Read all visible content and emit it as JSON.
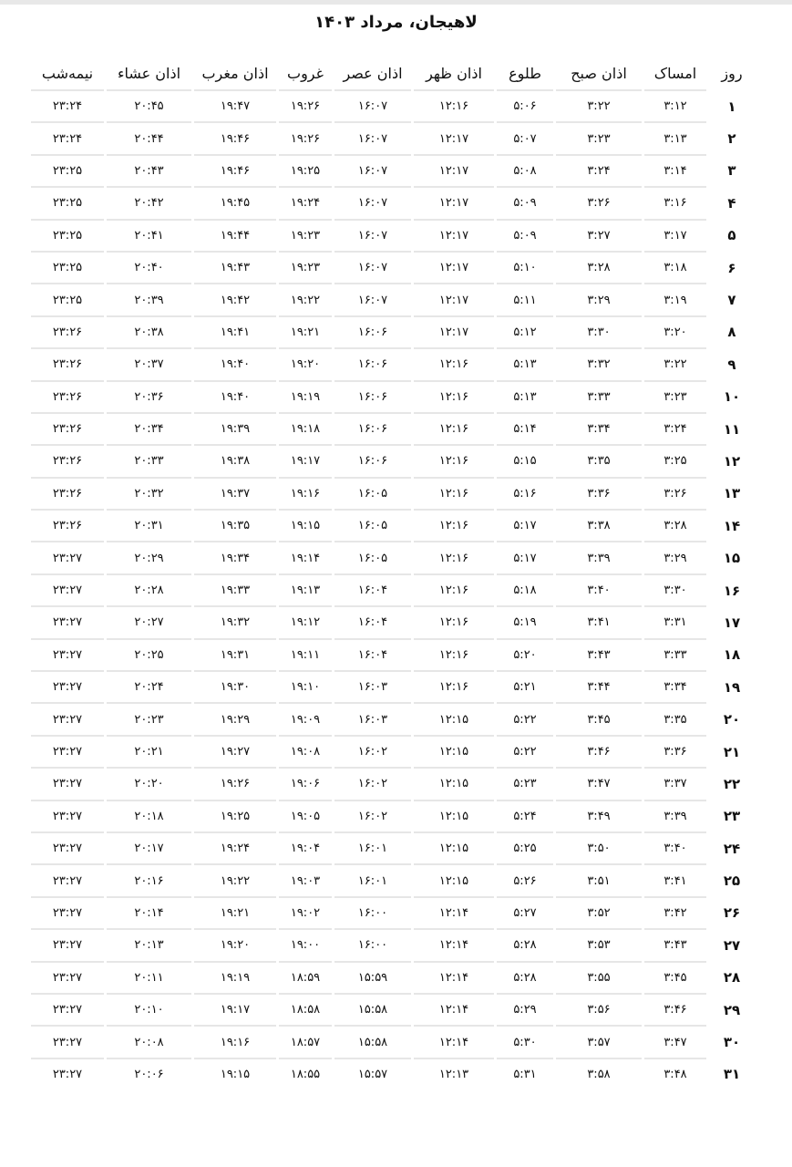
{
  "title": "لاهیجان، مرداد ۱۴۰۳",
  "table": {
    "headers": [
      "روز",
      "امساک",
      "اذان صبح",
      "طلوع",
      "اذان ظهر",
      "اذان عصر",
      "غروب",
      "اذان مغرب",
      "اذان عشاء",
      "نیمه‌شب"
    ],
    "rows": [
      [
        "۱",
        "۳:۱۲",
        "۳:۲۲",
        "۵:۰۶",
        "۱۲:۱۶",
        "۱۶:۰۷",
        "۱۹:۲۶",
        "۱۹:۴۷",
        "۲۰:۴۵",
        "۲۳:۲۴"
      ],
      [
        "۲",
        "۳:۱۳",
        "۳:۲۳",
        "۵:۰۷",
        "۱۲:۱۷",
        "۱۶:۰۷",
        "۱۹:۲۶",
        "۱۹:۴۶",
        "۲۰:۴۴",
        "۲۳:۲۴"
      ],
      [
        "۳",
        "۳:۱۴",
        "۳:۲۴",
        "۵:۰۸",
        "۱۲:۱۷",
        "۱۶:۰۷",
        "۱۹:۲۵",
        "۱۹:۴۶",
        "۲۰:۴۳",
        "۲۳:۲۵"
      ],
      [
        "۴",
        "۳:۱۶",
        "۳:۲۶",
        "۵:۰۹",
        "۱۲:۱۷",
        "۱۶:۰۷",
        "۱۹:۲۴",
        "۱۹:۴۵",
        "۲۰:۴۲",
        "۲۳:۲۵"
      ],
      [
        "۵",
        "۳:۱۷",
        "۳:۲۷",
        "۵:۰۹",
        "۱۲:۱۷",
        "۱۶:۰۷",
        "۱۹:۲۳",
        "۱۹:۴۴",
        "۲۰:۴۱",
        "۲۳:۲۵"
      ],
      [
        "۶",
        "۳:۱۸",
        "۳:۲۸",
        "۵:۱۰",
        "۱۲:۱۷",
        "۱۶:۰۷",
        "۱۹:۲۳",
        "۱۹:۴۳",
        "۲۰:۴۰",
        "۲۳:۲۵"
      ],
      [
        "۷",
        "۳:۱۹",
        "۳:۲۹",
        "۵:۱۱",
        "۱۲:۱۷",
        "۱۶:۰۷",
        "۱۹:۲۲",
        "۱۹:۴۲",
        "۲۰:۳۹",
        "۲۳:۲۵"
      ],
      [
        "۸",
        "۳:۲۰",
        "۳:۳۰",
        "۵:۱۲",
        "۱۲:۱۷",
        "۱۶:۰۶",
        "۱۹:۲۱",
        "۱۹:۴۱",
        "۲۰:۳۸",
        "۲۳:۲۶"
      ],
      [
        "۹",
        "۳:۲۲",
        "۳:۳۲",
        "۵:۱۳",
        "۱۲:۱۶",
        "۱۶:۰۶",
        "۱۹:۲۰",
        "۱۹:۴۰",
        "۲۰:۳۷",
        "۲۳:۲۶"
      ],
      [
        "۱۰",
        "۳:۲۳",
        "۳:۳۳",
        "۵:۱۳",
        "۱۲:۱۶",
        "۱۶:۰۶",
        "۱۹:۱۹",
        "۱۹:۴۰",
        "۲۰:۳۶",
        "۲۳:۲۶"
      ],
      [
        "۱۱",
        "۳:۲۴",
        "۳:۳۴",
        "۵:۱۴",
        "۱۲:۱۶",
        "۱۶:۰۶",
        "۱۹:۱۸",
        "۱۹:۳۹",
        "۲۰:۳۴",
        "۲۳:۲۶"
      ],
      [
        "۱۲",
        "۳:۲۵",
        "۳:۳۵",
        "۵:۱۵",
        "۱۲:۱۶",
        "۱۶:۰۶",
        "۱۹:۱۷",
        "۱۹:۳۸",
        "۲۰:۳۳",
        "۲۳:۲۶"
      ],
      [
        "۱۳",
        "۳:۲۶",
        "۳:۳۶",
        "۵:۱۶",
        "۱۲:۱۶",
        "۱۶:۰۵",
        "۱۹:۱۶",
        "۱۹:۳۷",
        "۲۰:۳۲",
        "۲۳:۲۶"
      ],
      [
        "۱۴",
        "۳:۲۸",
        "۳:۳۸",
        "۵:۱۷",
        "۱۲:۱۶",
        "۱۶:۰۵",
        "۱۹:۱۵",
        "۱۹:۳۵",
        "۲۰:۳۱",
        "۲۳:۲۶"
      ],
      [
        "۱۵",
        "۳:۲۹",
        "۳:۳۹",
        "۵:۱۷",
        "۱۲:۱۶",
        "۱۶:۰۵",
        "۱۹:۱۴",
        "۱۹:۳۴",
        "۲۰:۲۹",
        "۲۳:۲۷"
      ],
      [
        "۱۶",
        "۳:۳۰",
        "۳:۴۰",
        "۵:۱۸",
        "۱۲:۱۶",
        "۱۶:۰۴",
        "۱۹:۱۳",
        "۱۹:۳۳",
        "۲۰:۲۸",
        "۲۳:۲۷"
      ],
      [
        "۱۷",
        "۳:۳۱",
        "۳:۴۱",
        "۵:۱۹",
        "۱۲:۱۶",
        "۱۶:۰۴",
        "۱۹:۱۲",
        "۱۹:۳۲",
        "۲۰:۲۷",
        "۲۳:۲۷"
      ],
      [
        "۱۸",
        "۳:۳۳",
        "۳:۴۳",
        "۵:۲۰",
        "۱۲:۱۶",
        "۱۶:۰۴",
        "۱۹:۱۱",
        "۱۹:۳۱",
        "۲۰:۲۵",
        "۲۳:۲۷"
      ],
      [
        "۱۹",
        "۳:۳۴",
        "۳:۴۴",
        "۵:۲۱",
        "۱۲:۱۶",
        "۱۶:۰۳",
        "۱۹:۱۰",
        "۱۹:۳۰",
        "۲۰:۲۴",
        "۲۳:۲۷"
      ],
      [
        "۲۰",
        "۳:۳۵",
        "۳:۴۵",
        "۵:۲۲",
        "۱۲:۱۵",
        "۱۶:۰۳",
        "۱۹:۰۹",
        "۱۹:۲۹",
        "۲۰:۲۳",
        "۲۳:۲۷"
      ],
      [
        "۲۱",
        "۳:۳۶",
        "۳:۴۶",
        "۵:۲۲",
        "۱۲:۱۵",
        "۱۶:۰۲",
        "۱۹:۰۸",
        "۱۹:۲۷",
        "۲۰:۲۱",
        "۲۳:۲۷"
      ],
      [
        "۲۲",
        "۳:۳۷",
        "۳:۴۷",
        "۵:۲۳",
        "۱۲:۱۵",
        "۱۶:۰۲",
        "۱۹:۰۶",
        "۱۹:۲۶",
        "۲۰:۲۰",
        "۲۳:۲۷"
      ],
      [
        "۲۳",
        "۳:۳۹",
        "۳:۴۹",
        "۵:۲۴",
        "۱۲:۱۵",
        "۱۶:۰۲",
        "۱۹:۰۵",
        "۱۹:۲۵",
        "۲۰:۱۸",
        "۲۳:۲۷"
      ],
      [
        "۲۴",
        "۳:۴۰",
        "۳:۵۰",
        "۵:۲۵",
        "۱۲:۱۵",
        "۱۶:۰۱",
        "۱۹:۰۴",
        "۱۹:۲۴",
        "۲۰:۱۷",
        "۲۳:۲۷"
      ],
      [
        "۲۵",
        "۳:۴۱",
        "۳:۵۱",
        "۵:۲۶",
        "۱۲:۱۵",
        "۱۶:۰۱",
        "۱۹:۰۳",
        "۱۹:۲۲",
        "۲۰:۱۶",
        "۲۳:۲۷"
      ],
      [
        "۲۶",
        "۳:۴۲",
        "۳:۵۲",
        "۵:۲۷",
        "۱۲:۱۴",
        "۱۶:۰۰",
        "۱۹:۰۲",
        "۱۹:۲۱",
        "۲۰:۱۴",
        "۲۳:۲۷"
      ],
      [
        "۲۷",
        "۳:۴۳",
        "۳:۵۳",
        "۵:۲۸",
        "۱۲:۱۴",
        "۱۶:۰۰",
        "۱۹:۰۰",
        "۱۹:۲۰",
        "۲۰:۱۳",
        "۲۳:۲۷"
      ],
      [
        "۲۸",
        "۳:۴۵",
        "۳:۵۵",
        "۵:۲۸",
        "۱۲:۱۴",
        "۱۵:۵۹",
        "۱۸:۵۹",
        "۱۹:۱۹",
        "۲۰:۱۱",
        "۲۳:۲۷"
      ],
      [
        "۲۹",
        "۳:۴۶",
        "۳:۵۶",
        "۵:۲۹",
        "۱۲:۱۴",
        "۱۵:۵۸",
        "۱۸:۵۸",
        "۱۹:۱۷",
        "۲۰:۱۰",
        "۲۳:۲۷"
      ],
      [
        "۳۰",
        "۳:۴۷",
        "۳:۵۷",
        "۵:۳۰",
        "۱۲:۱۴",
        "۱۵:۵۸",
        "۱۸:۵۷",
        "۱۹:۱۶",
        "۲۰:۰۸",
        "۲۳:۲۷"
      ],
      [
        "۳۱",
        "۳:۴۸",
        "۳:۵۸",
        "۵:۳۱",
        "۱۲:۱۳",
        "۱۵:۵۷",
        "۱۸:۵۵",
        "۱۹:۱۵",
        "۲۰:۰۶",
        "۲۳:۲۷"
      ]
    ]
  }
}
